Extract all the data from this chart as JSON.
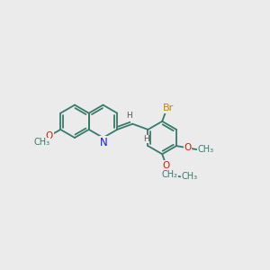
{
  "bg_color": "#ebebeb",
  "bond_color": "#3a7a6a",
  "N_color": "#1a1aee",
  "O_color": "#cc2200",
  "Br_color": "#bb8800",
  "H_color": "#555555",
  "font_size": 7.5,
  "line_width": 1.3,
  "dbo": 0.055,
  "L": 0.36,
  "xlim": [
    -2.0,
    2.6
  ],
  "ylim": [
    -1.6,
    1.5
  ]
}
